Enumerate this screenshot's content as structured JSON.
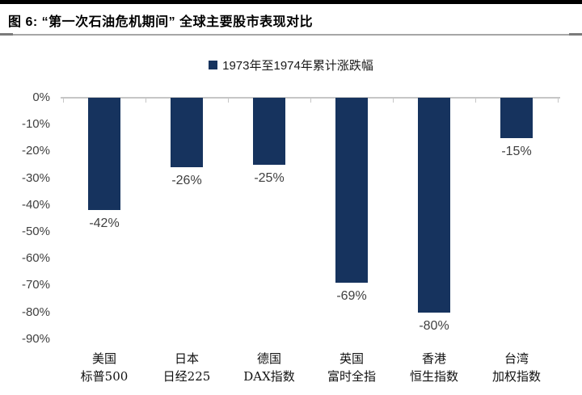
{
  "figure": {
    "title": "图 6: “第一次石油危机期间” 全球主要股市表现对比"
  },
  "legend": {
    "label": "1973年至1974年累计涨跌幅"
  },
  "chart_data": {
    "type": "bar",
    "title": "图 6: “第一次石油危机期间” 全球主要股市表现对比",
    "legend": "1973年至1974年累计涨跌幅",
    "legend_position": "top-center",
    "categories": [
      {
        "line1": "美国",
        "line2": "标普500"
      },
      {
        "line1": "日本",
        "line2": "日经225"
      },
      {
        "line1": "德国",
        "line2": "DAX指数"
      },
      {
        "line1": "英国",
        "line2": "富时全指"
      },
      {
        "line1": "香港",
        "line2": "恒生指数"
      },
      {
        "line1": "台湾",
        "line2": "加权指数"
      }
    ],
    "values": [
      -42,
      -26,
      -25,
      -69,
      -80,
      -15
    ],
    "value_labels": [
      "-42%",
      "-26%",
      "-25%",
      "-69%",
      "-80%",
      "-15%"
    ],
    "yticks": [
      "0%",
      "-10%",
      "-20%",
      "-30%",
      "-40%",
      "-50%",
      "-60%",
      "-70%",
      "-80%",
      "-90%"
    ],
    "ytick_values": [
      0,
      -10,
      -20,
      -30,
      -40,
      -50,
      -60,
      -70,
      -80,
      -90
    ],
    "ylim": [
      -90,
      0
    ],
    "xlabel": "",
    "ylabel": "",
    "grid": false,
    "bar_color": "#16335E"
  },
  "colors": {
    "bar": "#16335E",
    "axis": "#c6c6c6",
    "tick_text": "#404040",
    "title_text": "#000000",
    "top_rule": "#000000",
    "divider": "#a6a6a6"
  }
}
